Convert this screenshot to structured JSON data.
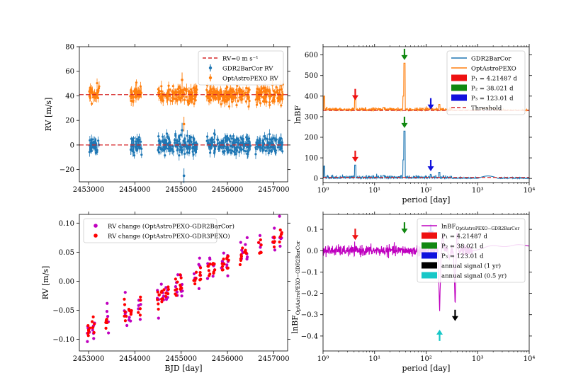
{
  "figure": {
    "panels": 4
  },
  "chart_data": [
    {
      "id": "rv-timeseries",
      "type": "scatter",
      "xlabel": "",
      "ylabel": "RV [m/s]",
      "xlim": [
        2452800,
        2457300
      ],
      "ylim": [
        -30,
        80
      ],
      "xticks": [
        2453000,
        2454000,
        2455000,
        2456000,
        2457000
      ],
      "xticklabels": [
        "2453000",
        "2454000",
        "2455000",
        "2456000",
        "2457000"
      ],
      "yticks": [
        -20,
        0,
        20,
        40,
        60,
        80
      ],
      "yticklabels": [
        "−20",
        "0",
        "20",
        "40",
        "60",
        "80"
      ],
      "hlines": [
        {
          "y": 0,
          "color": "#d62728",
          "style": "dashed"
        },
        {
          "y": 41,
          "color": "#d62728",
          "style": "dashed"
        }
      ],
      "legend": {
        "position": "top-right",
        "entries": [
          {
            "label": "RV=0 m s⁻¹",
            "color": "#d62728",
            "kind": "dashed"
          },
          {
            "label": "GDR2BarCor RV",
            "color": "#1f77b4",
            "kind": "errorbar"
          },
          {
            "label": "OptAstroPEXO RV",
            "color": "#ff7f0e",
            "kind": "errorbar"
          }
        ]
      },
      "series": [
        {
          "name": "GDR2BarCor RV",
          "color": "#1f77b4",
          "offset": 0,
          "scatter": 3.5,
          "segments": [
            [
              2453000,
              2453230
            ],
            [
              2453900,
              2454150
            ],
            [
              2454500,
              2455350
            ],
            [
              2455550,
              2456500
            ],
            [
              2456600,
              2457200
            ]
          ],
          "outliers": [
            [
              2455060,
              -25
            ],
            [
              2455020,
              12
            ]
          ]
        },
        {
          "name": "OptAstroPEXO RV",
          "color": "#ff7f0e",
          "offset": 41,
          "scatter": 3.5,
          "segments": [
            [
              2453000,
              2453230
            ],
            [
              2453900,
              2454150
            ],
            [
              2454500,
              2455350
            ],
            [
              2455550,
              2456500
            ],
            [
              2456600,
              2457200
            ]
          ],
          "outliers": [
            [
              2455060,
              17
            ],
            [
              2455020,
              53
            ]
          ]
        }
      ]
    },
    {
      "id": "periodogram-lnbf",
      "type": "line",
      "xscale": "log",
      "xlabel": "period [day]",
      "ylabel": "lnBF",
      "xlim": [
        1,
        10000
      ],
      "ylim": [
        -20,
        640
      ],
      "xticks": [
        1,
        10,
        100,
        1000,
        10000
      ],
      "xticklabels": [
        "10⁰",
        "10¹",
        "10²",
        "10³",
        "10⁴"
      ],
      "yticks": [
        0,
        100,
        200,
        300,
        400,
        500,
        600
      ],
      "yticklabels": [
        "0",
        "100",
        "200",
        "300",
        "400",
        "500",
        "600"
      ],
      "threshold": {
        "label": "Threshold",
        "values": [
          5,
          330
        ],
        "color": "#d62728"
      },
      "series": [
        {
          "name": "GDR2BarCor",
          "color": "#1f77b4",
          "baseline": 0,
          "peaks": [
            [
              1.05,
              60
            ],
            [
              4.21487,
              65
            ],
            [
              38.021,
              230
            ],
            [
              36.5,
              90
            ],
            [
              123.01,
              20
            ],
            [
              180,
              30
            ],
            [
              1700,
              18
            ],
            [
              15,
              15
            ]
          ]
        },
        {
          "name": "OptAstroPEXO",
          "color": "#ff7f0e",
          "baseline": 330,
          "peaks": [
            [
              1.05,
              400
            ],
            [
              4.21487,
              390
            ],
            [
              38.021,
              560
            ],
            [
              36.5,
              400
            ],
            [
              123.01,
              345
            ],
            [
              180,
              360
            ],
            [
              1700,
              345
            ],
            [
              15,
              345
            ]
          ]
        }
      ],
      "arrows": [
        {
          "period": 4.21487,
          "y": 380,
          "color": "#ee1111"
        },
        {
          "period": 38.021,
          "y": 575,
          "color": "#118811"
        },
        {
          "period": 123.01,
          "y": 335,
          "color": "#1111dd"
        },
        {
          "period": 4.21487,
          "y": 80,
          "color": "#ee1111"
        },
        {
          "period": 38.021,
          "y": 245,
          "color": "#118811"
        },
        {
          "period": 123.01,
          "y": 35,
          "color": "#1111dd"
        }
      ],
      "legend": {
        "position": "top-right",
        "entries": [
          {
            "label": "GDR2BarCor",
            "color": "#1f77b4",
            "kind": "line"
          },
          {
            "label": "OptAstroPEXO",
            "color": "#ff7f0e",
            "kind": "line"
          },
          {
            "label": "P₁ = 4.21487 d",
            "color": "#ee1111",
            "kind": "patch"
          },
          {
            "label": "P₂ = 38.021 d",
            "color": "#118811",
            "kind": "patch"
          },
          {
            "label": "P₃ = 123.01 d",
            "color": "#1111dd",
            "kind": "patch"
          },
          {
            "label": "Threshold",
            "color": "#d62728",
            "kind": "dashed"
          }
        ]
      }
    },
    {
      "id": "rv-change",
      "type": "scatter",
      "xlabel": "BJD [day]",
      "ylabel": "RV [m/s]",
      "xlim": [
        2452800,
        2457300
      ],
      "ylim": [
        -0.12,
        0.115
      ],
      "xticks": [
        2453000,
        2454000,
        2455000,
        2456000,
        2457000
      ],
      "xticklabels": [
        "2453000",
        "2454000",
        "2455000",
        "2456000",
        "2457000"
      ],
      "yticks": [
        -0.1,
        -0.05,
        0.0,
        0.05,
        0.1
      ],
      "yticklabels": [
        "−0.10",
        "−0.05",
        "0.00",
        "0.05",
        "0.10"
      ],
      "trend": {
        "x": [
          2453000,
          2457200
        ],
        "y": [
          -0.085,
          0.08
        ]
      },
      "clusters": [
        2453000,
        2453100,
        2453400,
        2453800,
        2453900,
        2454100,
        2454500,
        2454600,
        2454700,
        2454900,
        2455000,
        2455300,
        2455400,
        2455600,
        2455700,
        2455900,
        2456000,
        2456300,
        2456400,
        2456700,
        2457000,
        2457150
      ],
      "legend": {
        "position": "top-left",
        "entries": [
          {
            "label": "RV change (OptAstroPEXO-GDR2BarCor)",
            "color": "#bf00bf",
            "kind": "dot"
          },
          {
            "label": "RV change (OptAstroPEXO-GDR3PEXO)",
            "color": "#ff0000",
            "kind": "dot"
          }
        ]
      },
      "series": [
        {
          "name": "RV change (OptAstroPEXO-GDR2BarCor)",
          "color": "#bf00bf",
          "spread": 0.014
        },
        {
          "name": "RV change (OptAstroPEXO-GDR3PEXO)",
          "color": "#ff0000",
          "spread": 0.008
        }
      ]
    },
    {
      "id": "periodogram-difference",
      "type": "line",
      "xscale": "log",
      "xlabel": "period [day]",
      "ylabel": "lnBF",
      "ylabel_sub": "OptAstroPEXO−GDR2BarCor",
      "xlim": [
        1,
        10000
      ],
      "ylim": [
        -0.47,
        0.17
      ],
      "xticks": [
        1,
        10,
        100,
        1000,
        10000
      ],
      "xticklabels": [
        "10⁰",
        "10¹",
        "10²",
        "10³",
        "10⁴"
      ],
      "yticks": [
        -0.4,
        -0.3,
        -0.2,
        -0.1,
        0.0,
        0.1
      ],
      "yticklabels": [
        "−0.4",
        "−0.3",
        "−0.2",
        "−0.1",
        "0.0",
        "0.1"
      ],
      "series": [
        {
          "name": "lnBF OptAstroPEXO−GDR2BarCor",
          "color": "#bf00bf",
          "dips": [
            [
              182.6,
              -0.29
            ],
            [
              365.25,
              -0.26
            ],
            [
              210,
              0.08
            ],
            [
              400,
              0.09
            ],
            [
              280,
              -0.04
            ]
          ]
        }
      ],
      "arrows": [
        {
          "period": 4.21487,
          "y": 0.05,
          "color": "#ee1111",
          "dir": "down"
        },
        {
          "period": 38.021,
          "y": 0.08,
          "color": "#118811",
          "dir": "down"
        },
        {
          "period": 123.01,
          "y": 0.07,
          "color": "#1111dd",
          "dir": "down"
        },
        {
          "period": 365.25,
          "y": -0.33,
          "color": "#000000",
          "dir": "down"
        },
        {
          "period": 182.6,
          "y": -0.37,
          "color": "#17c7c7",
          "dir": "up"
        }
      ],
      "legend": {
        "position": "top-right",
        "entries": [
          {
            "label": "lnBF",
            "sub": "OptAstroPEXO−GDR2BarCor",
            "color": "#bf00bf",
            "kind": "line"
          },
          {
            "label": "P₁ = 4.21487 d",
            "color": "#ee1111",
            "kind": "patch"
          },
          {
            "label": "P₂ = 38.021 d",
            "color": "#118811",
            "kind": "patch"
          },
          {
            "label": "P₃ = 123.01 d",
            "color": "#1111dd",
            "kind": "patch"
          },
          {
            "label": "annual signal (1 yr)",
            "color": "#000000",
            "kind": "patch"
          },
          {
            "label": "annual signal (0.5 yr)",
            "color": "#17c7c7",
            "kind": "patch"
          }
        ]
      }
    }
  ]
}
